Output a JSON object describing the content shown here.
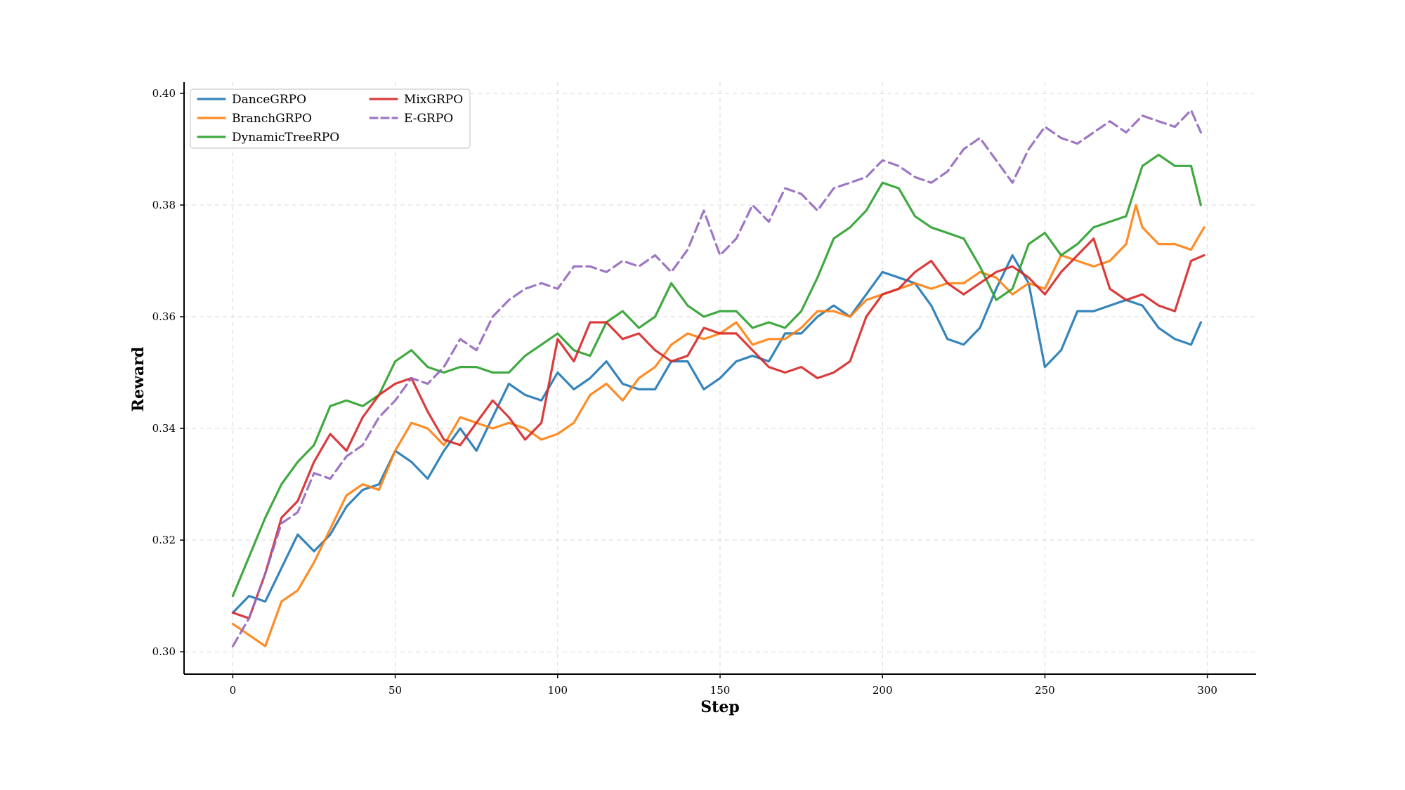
{
  "chart_data": {
    "type": "line",
    "title": "",
    "xlabel": "Step",
    "ylabel": "Reward",
    "xlim": [
      -15,
      315
    ],
    "ylim": [
      0.296,
      0.402
    ],
    "xticks": [
      0,
      50,
      100,
      150,
      200,
      250,
      300
    ],
    "yticks": [
      0.3,
      0.32,
      0.34,
      0.36,
      0.38,
      0.4
    ],
    "xtick_labels": [
      "0",
      "50",
      "100",
      "150",
      "200",
      "250",
      "300"
    ],
    "ytick_labels": [
      "0.30",
      "0.32",
      "0.34",
      "0.36",
      "0.38",
      "0.40"
    ],
    "grid": true,
    "legend_position": "top-left",
    "series": [
      {
        "name": "DanceGRPO",
        "color": "#1f77b4",
        "dash": "solid",
        "x": [
          0,
          5,
          10,
          15,
          20,
          25,
          30,
          35,
          40,
          45,
          50,
          55,
          60,
          65,
          70,
          75,
          80,
          85,
          90,
          95,
          100,
          105,
          110,
          115,
          120,
          125,
          130,
          135,
          140,
          145,
          150,
          155,
          160,
          165,
          170,
          175,
          180,
          185,
          190,
          195,
          200,
          205,
          210,
          215,
          220,
          225,
          230,
          235,
          240,
          245,
          250,
          255,
          260,
          265,
          270,
          275,
          280,
          285,
          290,
          295,
          298
        ],
        "y": [
          0.307,
          0.31,
          0.309,
          0.315,
          0.321,
          0.318,
          0.321,
          0.326,
          0.329,
          0.33,
          0.336,
          0.334,
          0.331,
          0.336,
          0.34,
          0.336,
          0.342,
          0.348,
          0.346,
          0.345,
          0.35,
          0.347,
          0.349,
          0.352,
          0.348,
          0.347,
          0.347,
          0.352,
          0.352,
          0.347,
          0.349,
          0.352,
          0.353,
          0.352,
          0.357,
          0.357,
          0.36,
          0.362,
          0.36,
          0.364,
          0.368,
          0.367,
          0.366,
          0.362,
          0.356,
          0.355,
          0.358,
          0.365,
          0.371,
          0.366,
          0.351,
          0.354,
          0.361,
          0.361,
          0.362,
          0.363,
          0.362,
          0.358,
          0.356,
          0.355,
          0.359
        ]
      },
      {
        "name": "BranchGRPO",
        "color": "#ff7f0e",
        "dash": "solid",
        "x": [
          0,
          5,
          10,
          15,
          20,
          25,
          30,
          35,
          40,
          45,
          50,
          55,
          60,
          65,
          70,
          75,
          80,
          85,
          90,
          95,
          100,
          105,
          110,
          115,
          120,
          125,
          130,
          135,
          140,
          145,
          150,
          155,
          160,
          165,
          170,
          175,
          180,
          185,
          190,
          195,
          200,
          205,
          210,
          215,
          220,
          225,
          230,
          235,
          240,
          245,
          250,
          255,
          260,
          265,
          270,
          275,
          278,
          280,
          285,
          290,
          295,
          299
        ],
        "y": [
          0.305,
          0.303,
          0.301,
          0.309,
          0.311,
          0.316,
          0.322,
          0.328,
          0.33,
          0.329,
          0.336,
          0.341,
          0.34,
          0.337,
          0.342,
          0.341,
          0.34,
          0.341,
          0.34,
          0.338,
          0.339,
          0.341,
          0.346,
          0.348,
          0.345,
          0.349,
          0.351,
          0.355,
          0.357,
          0.356,
          0.357,
          0.359,
          0.355,
          0.356,
          0.356,
          0.358,
          0.361,
          0.361,
          0.36,
          0.363,
          0.364,
          0.365,
          0.366,
          0.365,
          0.366,
          0.366,
          0.368,
          0.367,
          0.364,
          0.366,
          0.365,
          0.371,
          0.37,
          0.369,
          0.37,
          0.373,
          0.38,
          0.376,
          0.373,
          0.373,
          0.372,
          0.376
        ]
      },
      {
        "name": "DynamicTreeRPO",
        "color": "#2ca02c",
        "dash": "solid",
        "x": [
          0,
          5,
          10,
          15,
          20,
          25,
          30,
          35,
          40,
          45,
          50,
          55,
          60,
          65,
          70,
          75,
          80,
          85,
          90,
          95,
          100,
          105,
          110,
          115,
          120,
          125,
          130,
          135,
          140,
          145,
          150,
          155,
          160,
          165,
          170,
          175,
          180,
          185,
          190,
          195,
          200,
          205,
          210,
          215,
          220,
          225,
          230,
          235,
          240,
          245,
          250,
          255,
          260,
          265,
          270,
          275,
          280,
          285,
          290,
          295,
          298
        ],
        "y": [
          0.31,
          0.317,
          0.324,
          0.33,
          0.334,
          0.337,
          0.344,
          0.345,
          0.344,
          0.346,
          0.352,
          0.354,
          0.351,
          0.35,
          0.351,
          0.351,
          0.35,
          0.35,
          0.353,
          0.355,
          0.357,
          0.354,
          0.353,
          0.359,
          0.361,
          0.358,
          0.36,
          0.366,
          0.362,
          0.36,
          0.361,
          0.361,
          0.358,
          0.359,
          0.358,
          0.361,
          0.367,
          0.374,
          0.376,
          0.379,
          0.384,
          0.383,
          0.378,
          0.376,
          0.375,
          0.374,
          0.369,
          0.363,
          0.365,
          0.373,
          0.375,
          0.371,
          0.373,
          0.376,
          0.377,
          0.378,
          0.387,
          0.389,
          0.387,
          0.387,
          0.38
        ]
      },
      {
        "name": "MixGRPO",
        "color": "#d62728",
        "dash": "solid",
        "x": [
          0,
          5,
          10,
          15,
          20,
          25,
          30,
          35,
          40,
          45,
          50,
          55,
          60,
          65,
          70,
          75,
          80,
          85,
          90,
          95,
          100,
          105,
          110,
          115,
          120,
          125,
          130,
          135,
          140,
          145,
          150,
          155,
          160,
          165,
          170,
          175,
          180,
          185,
          190,
          195,
          200,
          205,
          210,
          215,
          220,
          225,
          230,
          235,
          240,
          245,
          250,
          255,
          260,
          265,
          270,
          275,
          280,
          285,
          290,
          295,
          299
        ],
        "y": [
          0.307,
          0.306,
          0.314,
          0.324,
          0.327,
          0.334,
          0.339,
          0.336,
          0.342,
          0.346,
          0.348,
          0.349,
          0.343,
          0.338,
          0.337,
          0.341,
          0.345,
          0.342,
          0.338,
          0.341,
          0.356,
          0.352,
          0.359,
          0.359,
          0.356,
          0.357,
          0.354,
          0.352,
          0.353,
          0.358,
          0.357,
          0.357,
          0.354,
          0.351,
          0.35,
          0.351,
          0.349,
          0.35,
          0.352,
          0.36,
          0.364,
          0.365,
          0.368,
          0.37,
          0.366,
          0.364,
          0.366,
          0.368,
          0.369,
          0.367,
          0.364,
          0.368,
          0.371,
          0.374,
          0.365,
          0.363,
          0.364,
          0.362,
          0.361,
          0.37,
          0.371
        ]
      },
      {
        "name": "E-GRPO",
        "color": "#9467bd",
        "dash": "dashed",
        "x": [
          0,
          5,
          10,
          15,
          20,
          25,
          30,
          35,
          40,
          45,
          50,
          55,
          60,
          65,
          70,
          75,
          80,
          85,
          90,
          95,
          100,
          105,
          110,
          115,
          120,
          125,
          130,
          135,
          140,
          145,
          150,
          155,
          160,
          165,
          170,
          175,
          180,
          185,
          190,
          195,
          200,
          205,
          210,
          215,
          220,
          225,
          230,
          235,
          240,
          245,
          250,
          255,
          260,
          265,
          270,
          275,
          280,
          285,
          290,
          295,
          298
        ],
        "y": [
          0.301,
          0.306,
          0.314,
          0.323,
          0.325,
          0.332,
          0.331,
          0.335,
          0.337,
          0.342,
          0.345,
          0.349,
          0.348,
          0.351,
          0.356,
          0.354,
          0.36,
          0.363,
          0.365,
          0.366,
          0.365,
          0.369,
          0.369,
          0.368,
          0.37,
          0.369,
          0.371,
          0.368,
          0.372,
          0.379,
          0.371,
          0.374,
          0.38,
          0.377,
          0.383,
          0.382,
          0.379,
          0.383,
          0.384,
          0.385,
          0.388,
          0.387,
          0.385,
          0.384,
          0.386,
          0.39,
          0.392,
          0.388,
          0.384,
          0.39,
          0.394,
          0.392,
          0.391,
          0.393,
          0.395,
          0.393,
          0.396,
          0.395,
          0.394,
          0.397,
          0.393
        ]
      }
    ]
  }
}
